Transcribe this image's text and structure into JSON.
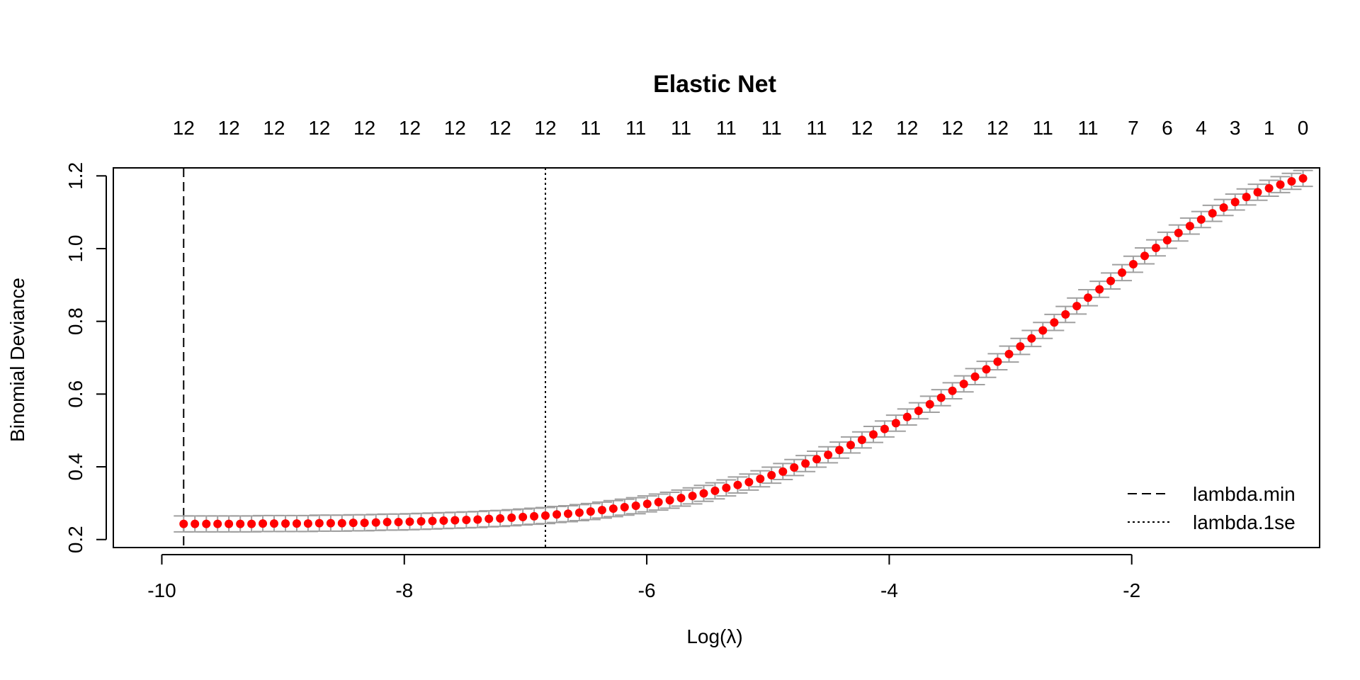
{
  "chart_data": {
    "type": "scatter",
    "title": "Elastic Net",
    "xlabel": "Log(λ)",
    "ylabel": "Binomial Deviance",
    "xlim": [
      -10.4,
      -0.45
    ],
    "ylim": [
      0.178,
      1.222
    ],
    "xticks": [
      -10,
      -8,
      -6,
      -4,
      -2
    ],
    "yticks": [
      0.2,
      0.4,
      0.6,
      0.8,
      1.0,
      1.2
    ],
    "xtick_labels": [
      "-10",
      "-8",
      "-6",
      "-4",
      "-2"
    ],
    "ytick_labels": [
      "0.2",
      "0.4",
      "0.6",
      "0.8",
      "1.0",
      "1.2"
    ],
    "top_axis": {
      "x": [
        -9.82,
        -9.447,
        -9.074,
        -8.701,
        -8.328,
        -7.955,
        -7.582,
        -7.209,
        -6.836,
        -6.463,
        -6.09,
        -5.717,
        -5.344,
        -4.971,
        -4.598,
        -4.225,
        -3.852,
        -3.479,
        -3.106,
        -2.733,
        -2.36,
        -1.987,
        -1.707,
        -1.427,
        -1.147,
        -0.867,
        -0.587
      ],
      "labels": [
        "12",
        "12",
        "12",
        "12",
        "12",
        "12",
        "12",
        "12",
        "12",
        "11",
        "11",
        "11",
        "11",
        "11",
        "11",
        "12",
        "12",
        "12",
        "12",
        "11",
        "11",
        "7",
        "6",
        "4",
        "3",
        "1",
        "0"
      ]
    },
    "series": [
      {
        "x": [
          -9.82,
          -9.727,
          -9.633,
          -9.54,
          -9.447,
          -9.353,
          -9.26,
          -9.167,
          -9.074,
          -8.98,
          -8.887,
          -8.794,
          -8.701,
          -8.607,
          -8.514,
          -8.421,
          -8.328,
          -8.234,
          -8.141,
          -8.048,
          -7.955,
          -7.861,
          -7.768,
          -7.675,
          -7.582,
          -7.488,
          -7.395,
          -7.302,
          -7.209,
          -7.115,
          -7.022,
          -6.929,
          -6.836,
          -6.742,
          -6.649,
          -6.556,
          -6.463,
          -6.369,
          -6.276,
          -6.183,
          -6.09,
          -5.996,
          -5.903,
          -5.81,
          -5.717,
          -5.623,
          -5.53,
          -5.437,
          -5.344,
          -5.25,
          -5.157,
          -5.064,
          -4.971,
          -4.877,
          -4.784,
          -4.691,
          -4.598,
          -4.504,
          -4.411,
          -4.318,
          -4.225,
          -4.131,
          -4.038,
          -3.945,
          -3.852,
          -3.758,
          -3.665,
          -3.572,
          -3.479,
          -3.385,
          -3.292,
          -3.199,
          -3.106,
          -3.012,
          -2.919,
          -2.826,
          -2.733,
          -2.639,
          -2.546,
          -2.453,
          -2.36,
          -2.266,
          -2.173,
          -2.08,
          -1.987,
          -1.893,
          -1.8,
          -1.707,
          -1.614,
          -1.52,
          -1.427,
          -1.334,
          -1.241,
          -1.147,
          -1.054,
          -0.961,
          -0.867,
          -0.774,
          -0.681,
          -0.587
        ],
        "y": [
          0.243,
          0.243,
          0.243,
          0.243,
          0.243,
          0.243,
          0.243,
          0.244,
          0.244,
          0.244,
          0.244,
          0.244,
          0.245,
          0.245,
          0.245,
          0.246,
          0.246,
          0.247,
          0.248,
          0.248,
          0.249,
          0.25,
          0.251,
          0.252,
          0.253,
          0.254,
          0.255,
          0.257,
          0.258,
          0.26,
          0.262,
          0.264,
          0.266,
          0.269,
          0.271,
          0.274,
          0.277,
          0.281,
          0.285,
          0.289,
          0.293,
          0.298,
          0.303,
          0.308,
          0.314,
          0.32,
          0.327,
          0.334,
          0.342,
          0.35,
          0.358,
          0.367,
          0.377,
          0.387,
          0.398,
          0.409,
          0.421,
          0.433,
          0.446,
          0.46,
          0.474,
          0.489,
          0.504,
          0.52,
          0.537,
          0.554,
          0.572,
          0.59,
          0.609,
          0.628,
          0.648,
          0.668,
          0.689,
          0.71,
          0.731,
          0.753,
          0.775,
          0.797,
          0.819,
          0.842,
          0.865,
          0.888,
          0.911,
          0.934,
          0.957,
          0.98,
          1.002,
          1.023,
          1.043,
          1.062,
          1.08,
          1.097,
          1.113,
          1.128,
          1.142,
          1.155,
          1.166,
          1.176,
          1.185,
          1.193
        ],
        "se": 0.022
      }
    ],
    "vlines": [
      {
        "x": -9.82,
        "style": "dashed"
      },
      {
        "x": -6.836,
        "style": "dotted"
      }
    ],
    "legend": {
      "position": "bottom-right",
      "entries": [
        {
          "label": "lambda.min",
          "style": "dashed"
        },
        {
          "label": "lambda.1se",
          "style": "dotted"
        }
      ]
    },
    "grid": false,
    "colors": {
      "points": "#ff0000",
      "error_bars": "#a0a0a0",
      "axes": "#000000"
    }
  }
}
